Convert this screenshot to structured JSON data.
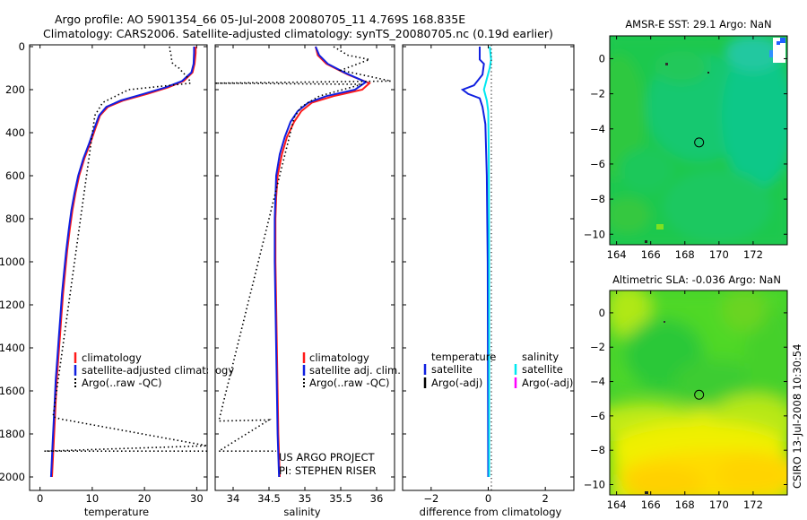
{
  "title": {
    "line1": "Argo profile: AO 5901354_66 05-Jul-2008 20080705_11 4.769S 168.835E",
    "line2": "Climatology: CARS2006. Satellite-adjusted climatology: synTS_20080705.nc (0.19d earlier)"
  },
  "colors": {
    "climatology": "#ff1a1a",
    "satellite": "#1020e0",
    "argo": "#000000",
    "sal_sat": "#00e8f0",
    "sal_argo": "#ff00ff"
  },
  "chart_data": [
    {
      "type": "line",
      "id": "temperature",
      "xlabel": "temperature",
      "ylabel": "",
      "xlim": [
        -2,
        32
      ],
      "ylim": [
        2050,
        0
      ],
      "xticks": [
        0,
        10,
        20,
        30
      ],
      "yticks": [
        0,
        200,
        400,
        600,
        800,
        1000,
        1200,
        1400,
        1600,
        1800,
        2000
      ],
      "legend": [
        "climatology",
        "satellite-adjusted climatology",
        "Argo(..raw -QC)"
      ],
      "series": [
        {
          "name": "climatology",
          "points": [
            [
              29.8,
              0
            ],
            [
              29.8,
              30
            ],
            [
              29.6,
              80
            ],
            [
              29.2,
              120
            ],
            [
              27.5,
              160
            ],
            [
              24.5,
              190
            ],
            [
              20.5,
              220
            ],
            [
              16,
              250
            ],
            [
              13,
              280
            ],
            [
              11.5,
              320
            ],
            [
              10.6,
              380
            ],
            [
              9.6,
              450
            ],
            [
              8.5,
              520
            ],
            [
              7.5,
              600
            ],
            [
              6.8,
              680
            ],
            [
              6.2,
              760
            ],
            [
              5.7,
              850
            ],
            [
              5.2,
              950
            ],
            [
              4.8,
              1050
            ],
            [
              4.4,
              1150
            ],
            [
              4.1,
              1250
            ],
            [
              3.8,
              1350
            ],
            [
              3.5,
              1450
            ],
            [
              3.2,
              1550
            ],
            [
              3.0,
              1650
            ],
            [
              2.8,
              1750
            ],
            [
              2.6,
              1850
            ],
            [
              2.4,
              1950
            ],
            [
              2.3,
              2000
            ]
          ]
        },
        {
          "name": "satellite-adjusted climatology",
          "points": [
            [
              29.5,
              0
            ],
            [
              29.5,
              30
            ],
            [
              29.4,
              80
            ],
            [
              29.0,
              120
            ],
            [
              27.2,
              160
            ],
            [
              24.0,
              190
            ],
            [
              19.8,
              220
            ],
            [
              15.5,
              250
            ],
            [
              12.7,
              280
            ],
            [
              11.3,
              320
            ],
            [
              10.4,
              380
            ],
            [
              9.4,
              450
            ],
            [
              8.3,
              520
            ],
            [
              7.3,
              600
            ],
            [
              6.6,
              680
            ],
            [
              6.0,
              760
            ],
            [
              5.5,
              850
            ],
            [
              5.0,
              950
            ],
            [
              4.6,
              1050
            ],
            [
              4.2,
              1150
            ],
            [
              3.9,
              1250
            ],
            [
              3.6,
              1350
            ],
            [
              3.3,
              1450
            ],
            [
              3.0,
              1550
            ],
            [
              2.8,
              1650
            ],
            [
              2.6,
              1750
            ],
            [
              2.4,
              1850
            ],
            [
              2.2,
              1950
            ],
            [
              2.1,
              2000
            ]
          ]
        },
        {
          "name": "Argo(..raw -QC)",
          "points": [
            [
              24.8,
              0
            ],
            [
              24.9,
              20
            ],
            [
              25.1,
              40
            ],
            [
              25.2,
              60
            ],
            [
              25.4,
              80
            ],
            [
              26.6,
              100
            ],
            [
              28.5,
              150
            ],
            [
              28.8,
              170
            ],
            [
              17.0,
              200
            ],
            [
              12.0,
              260
            ],
            [
              10.5,
              320
            ],
            [
              2.5,
              1720
            ],
            [
              3.8,
              1730
            ],
            [
              32,
              1855
            ],
            [
              0.8,
              1880
            ],
            [
              32,
              1880
            ]
          ]
        }
      ]
    },
    {
      "type": "line",
      "id": "salinity",
      "xlabel": "salinity",
      "xlim": [
        33.75,
        36.25
      ],
      "ylim": [
        2050,
        0
      ],
      "xticks": [
        34,
        34.5,
        35,
        35.5,
        36
      ],
      "legend": [
        "climatology",
        "satellite adj. clim.",
        "Argo(..raw -QC)"
      ],
      "annotation": [
        "US ARGO PROJECT",
        "PI: STEPHEN RISER"
      ],
      "series": [
        {
          "name": "climatology",
          "points": [
            [
              35.15,
              0
            ],
            [
              35.18,
              40
            ],
            [
              35.3,
              80
            ],
            [
              35.6,
              130
            ],
            [
              35.9,
              170
            ],
            [
              35.8,
              200
            ],
            [
              35.4,
              230
            ],
            [
              35.1,
              260
            ],
            [
              34.95,
              300
            ],
            [
              34.85,
              350
            ],
            [
              34.75,
              420
            ],
            [
              34.68,
              500
            ],
            [
              34.62,
              600
            ],
            [
              34.6,
              700
            ],
            [
              34.59,
              800
            ],
            [
              34.59,
              1000
            ],
            [
              34.6,
              1200
            ],
            [
              34.61,
              1400
            ],
            [
              34.62,
              1600
            ],
            [
              34.63,
              1800
            ],
            [
              34.65,
              2000
            ]
          ]
        },
        {
          "name": "satellite adj. clim.",
          "points": [
            [
              35.15,
              0
            ],
            [
              35.2,
              40
            ],
            [
              35.32,
              80
            ],
            [
              35.55,
              120
            ],
            [
              35.85,
              165
            ],
            [
              35.7,
              200
            ],
            [
              35.3,
              230
            ],
            [
              35.05,
              260
            ],
            [
              34.9,
              300
            ],
            [
              34.8,
              350
            ],
            [
              34.72,
              420
            ],
            [
              34.65,
              500
            ],
            [
              34.6,
              600
            ],
            [
              34.59,
              700
            ],
            [
              34.58,
              800
            ],
            [
              34.58,
              1000
            ],
            [
              34.59,
              1200
            ],
            [
              34.6,
              1400
            ],
            [
              34.61,
              1600
            ],
            [
              34.62,
              1800
            ],
            [
              34.64,
              2000
            ]
          ]
        },
        {
          "name": "Argo(..raw -QC)",
          "points": [
            [
              35.4,
              0
            ],
            [
              35.6,
              40
            ],
            [
              35.9,
              60
            ],
            [
              35.5,
              110
            ],
            [
              36.2,
              160
            ],
            [
              33.75,
              170
            ],
            [
              35.8,
              175
            ],
            [
              35.2,
              230
            ],
            [
              34.95,
              280
            ],
            [
              34.85,
              330
            ],
            [
              33.8,
              1740
            ],
            [
              34.5,
              1735
            ],
            [
              33.8,
              1880
            ],
            [
              34.6,
              1880
            ]
          ]
        }
      ]
    },
    {
      "type": "line",
      "id": "difference",
      "xlabel": "difference from climatology",
      "xlim": [
        -3,
        3
      ],
      "ylim": [
        2050,
        0
      ],
      "xticks": [
        -2,
        0,
        2
      ],
      "legend_left_title": "temperature",
      "legend_right_title": "salinity",
      "legend": [
        "satellite",
        "Argo(-adj)",
        "satellite",
        "Argo(-adj)"
      ],
      "series": [
        {
          "name": "temperature satellite",
          "points": [
            [
              -0.3,
              0
            ],
            [
              -0.3,
              60
            ],
            [
              -0.15,
              80
            ],
            [
              -0.2,
              130
            ],
            [
              -0.5,
              180
            ],
            [
              -0.9,
              200
            ],
            [
              -0.7,
              220
            ],
            [
              -0.3,
              240
            ],
            [
              -0.2,
              280
            ],
            [
              -0.15,
              320
            ],
            [
              -0.1,
              360
            ],
            [
              -0.05,
              600
            ],
            [
              -0.02,
              1000
            ],
            [
              -0.01,
              1500
            ],
            [
              0.0,
              2000
            ]
          ]
        },
        {
          "name": "salinity satellite",
          "points": [
            [
              0.05,
              0
            ],
            [
              0.1,
              60
            ],
            [
              0.05,
              100
            ],
            [
              -0.05,
              150
            ],
            [
              -0.15,
              200
            ],
            [
              -0.05,
              250
            ],
            [
              0.0,
              300
            ],
            [
              0.02,
              500
            ],
            [
              0.03,
              1000
            ],
            [
              0.03,
              1500
            ],
            [
              0.03,
              2000
            ]
          ]
        }
      ]
    },
    {
      "type": "heatmap",
      "id": "sst-map",
      "title": "AMSR-E SST: 29.1 Argo: NaN",
      "xticks": [
        164,
        166,
        168,
        170,
        172
      ],
      "yticks": [
        0,
        -2,
        -4,
        -6,
        -8,
        -10
      ],
      "xlim": [
        163.6,
        174
      ],
      "ylim": [
        -10.6,
        1.3
      ],
      "marker": [
        168.835,
        -4.769
      ]
    },
    {
      "type": "heatmap",
      "id": "sla-map",
      "title": "Altimetric SLA: -0.036 Argo: NaN",
      "xticks": [
        164,
        166,
        168,
        170,
        172
      ],
      "yticks": [
        0,
        -2,
        -4,
        -6,
        -8,
        -10
      ],
      "xlim": [
        163.6,
        174
      ],
      "ylim": [
        -10.6,
        1.3
      ],
      "marker": [
        168.835,
        -4.769
      ]
    }
  ],
  "footer": "CSIRO 13-Jul-2008 10:30:54"
}
